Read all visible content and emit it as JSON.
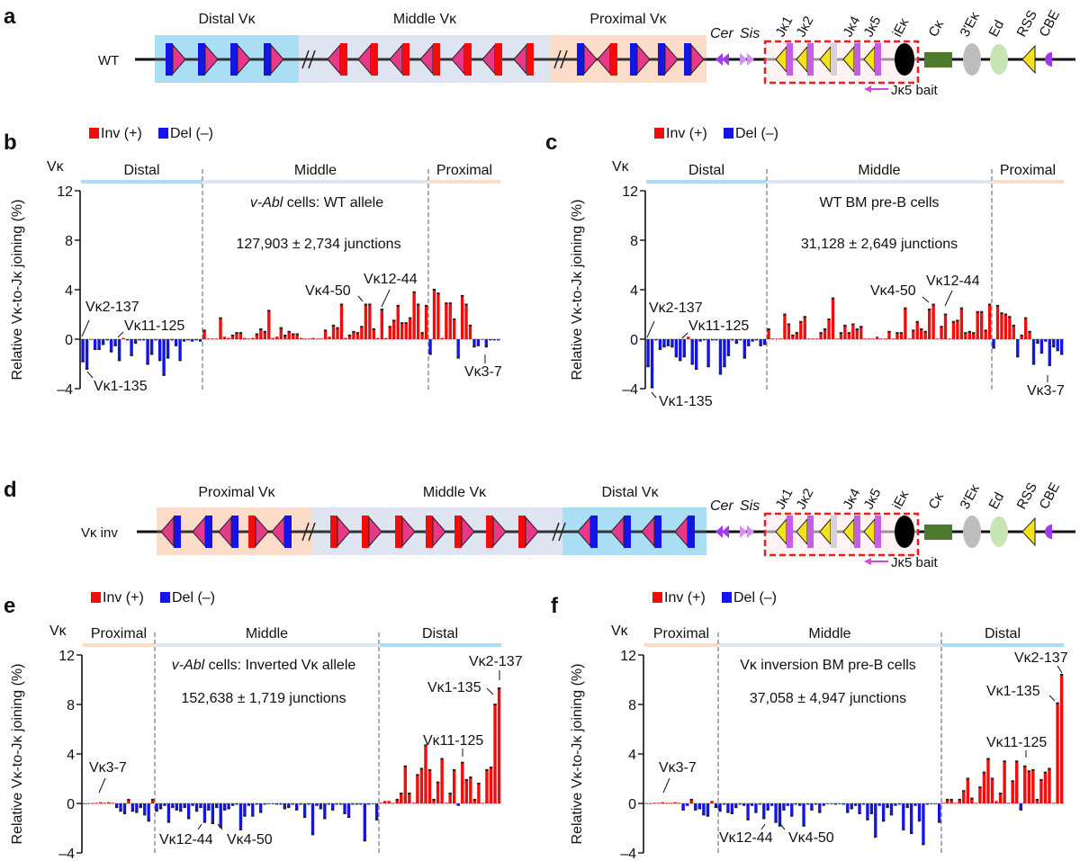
{
  "colors": {
    "inv": "#f20c0c",
    "del": "#1414e6",
    "distal": "#a9def4",
    "middle": "#dfe4f1",
    "proximal": "#fbdcc9",
    "v_pink": "#e8388a",
    "j_yellow": "#f7e21a",
    "j_purple": "#c55ee6",
    "cer": "#9b3cf0",
    "sis": "#d48ef2",
    "c_kappa": "#4d7a2e",
    "e3": "#bdbdbd",
    "ed": "#c7e4b5",
    "dashed_box": "#ee1c1c"
  },
  "panel_a": {
    "letter": "a",
    "allele": "WT",
    "regions": [
      "Distal Vκ",
      "Middle Vκ",
      "Proximal Vκ"
    ],
    "elements": [
      "Cer",
      "Sis",
      "Jκ1",
      "Jκ2",
      "Jκ4",
      "Jκ5",
      "iEκ",
      "Cκ",
      "3′Eκ",
      "Ed",
      "RSS",
      "CBE"
    ],
    "bait": "Jκ5 bait"
  },
  "panel_d": {
    "letter": "d",
    "allele": "Vκ inv",
    "regions": [
      "Proximal Vκ",
      "Middle Vκ",
      "Distal Vκ"
    ],
    "elements": [
      "Cer",
      "Sis",
      "Jκ1",
      "Jκ2",
      "Jκ4",
      "Jκ5",
      "iEκ",
      "Cκ",
      "3′Eκ",
      "Ed",
      "RSS",
      "CBE"
    ],
    "bait": "Jκ5 bait"
  },
  "chart_data": [
    {
      "panel": "b",
      "type": "bar",
      "title_italic": "v-Abl",
      "title_rest": " cells: WT allele",
      "subtitle": "127,903 ± 2,734 junctions",
      "ylabel": "Relative Vκ-to-Jκ joining (%)",
      "xlabel": "Vκ",
      "ylim": [
        -4,
        12
      ],
      "yticks": [
        -4,
        0,
        4,
        8,
        12
      ],
      "ytick_labels": [
        "–4",
        "0",
        "4",
        "8",
        "12"
      ],
      "legend": [
        "Inv (+)",
        "Del (–)"
      ],
      "legend_placement": "top-left",
      "grid": false,
      "annotations": [
        "Vκ2-137",
        "Vκ11-125",
        "Vκ1-135",
        "Vκ4-50",
        "Vκ12-44",
        "Vκ3-7"
      ],
      "segments": [
        {
          "name": "Distal",
          "values": [
            -1.8,
            -2.4,
            0,
            -0.8,
            -0.8,
            -0.4,
            -0.1,
            -1.0,
            -0.5,
            -1.7,
            0.1,
            -0.1,
            -1.3,
            -0.3,
            -0.1,
            -0.1,
            -2.0,
            -1.2,
            -0.1,
            -1.7,
            -2.9,
            -1.5,
            -0.1,
            -0.5,
            -1.7,
            -0.2,
            -0.1,
            -0.2,
            -0.1,
            -0.2
          ]
        },
        {
          "name": "Middle",
          "values": [
            0.7,
            0.05,
            0.05,
            0.05,
            1.7,
            0.2,
            0.1,
            0.3,
            0.5,
            0.5,
            0.1,
            0.05,
            0.1,
            0.4,
            0.8,
            0.6,
            2.3,
            0.1,
            0.2,
            0.9,
            0.3,
            0.6,
            0.4,
            0.4,
            0.1,
            0.05,
            0.05,
            0.1,
            0.05,
            0.05,
            0.7,
            0.2,
            1.1,
            0.9,
            2.8,
            0.1,
            0.3,
            0.6,
            0.5,
            1.0,
            2.8,
            2.8,
            0.8,
            0.1,
            2.4,
            0.1,
            1.0,
            1.5,
            2.7,
            1.3,
            1.3,
            1.7,
            3.8,
            2.8,
            0.5,
            2.7
          ]
        },
        {
          "name": "Proximal",
          "values": [
            -1.2,
            4.0,
            3.7,
            0.1,
            2.9,
            2.9,
            1.6,
            -1.5,
            3.5,
            2.8,
            1.1,
            -0.6,
            -0.5,
            0.0,
            -0.6,
            -0.1,
            -0.1,
            -0.1
          ]
        }
      ]
    },
    {
      "panel": "c",
      "type": "bar",
      "title_italic": "",
      "title_rest": "WT BM pre-B cells",
      "subtitle": "31,128 ± 2,649 junctions",
      "ylabel": "Relative Vκ-to-Jκ joining (%)",
      "xlabel": "Vκ",
      "ylim": [
        -4,
        12
      ],
      "yticks": [
        -4,
        0,
        4,
        8,
        12
      ],
      "ytick_labels": [
        "–4",
        "0",
        "4",
        "8",
        "12"
      ],
      "legend": [
        "Inv (+)",
        "Del (–)"
      ],
      "legend_placement": "top-left",
      "grid": false,
      "annotations": [
        "Vκ2-137",
        "Vκ11-125",
        "Vκ1-135",
        "Vκ4-50",
        "Vκ12-44",
        "Vκ3-7"
      ],
      "segments": [
        {
          "name": "Distal",
          "values": [
            -2.2,
            -3.9,
            -0.1,
            -0.8,
            -0.6,
            -0.5,
            -0.6,
            -1.4,
            -1.7,
            -1.4,
            0.2,
            -2.0,
            -2.4,
            -0.2,
            -0.1,
            -2.2,
            -0.1,
            -0.1,
            -2.8,
            -2.2,
            -1.3,
            -0.1,
            -0.3,
            -0.1,
            -1.5,
            -0.5,
            -0.2,
            -0.1,
            -0.5,
            -0.4
          ]
        },
        {
          "name": "Middle",
          "values": [
            0.8,
            0.05,
            0.05,
            0.05,
            2.0,
            1.2,
            0.3,
            0.5,
            1.4,
            1.8,
            0.05,
            0.05,
            0.05,
            0.5,
            0.8,
            1.6,
            3.3,
            0.05,
            0.5,
            1.1,
            0.5,
            1.2,
            0.8,
            1.0,
            0.05,
            0.05,
            0.05,
            0.2,
            0.05,
            0.05,
            0.6,
            0.05,
            0.5,
            0.5,
            2.5,
            0.05,
            0.7,
            1.4,
            0.8,
            0.6,
            2.4,
            2.8,
            0.05,
            1.0,
            2.0,
            0.05,
            1.4,
            1.5,
            2.5,
            0.5,
            0.6,
            0.5,
            2.2,
            2.2,
            0.7,
            2.8
          ]
        },
        {
          "name": "Proximal",
          "values": [
            -0.7,
            2.7,
            2.1,
            2.0,
            1.8,
            1.1,
            -1.4,
            0.3,
            1.7,
            0.6,
            -2.0,
            -0.3,
            -1.1,
            -0.2,
            -2.1,
            -0.6,
            -0.9,
            -1.2
          ]
        }
      ]
    },
    {
      "panel": "e",
      "type": "bar",
      "title_italic": "v-Abl",
      "title_rest": " cells: Inverted Vκ allele",
      "subtitle": "152,638 ± 1,719 junctions",
      "ylabel": "Relative Vκ-to-Jκ joining (%)",
      "xlabel": "Vκ",
      "ylim": [
        -4,
        12
      ],
      "yticks": [
        -4,
        0,
        4,
        8,
        12
      ],
      "ytick_labels": [
        "–4",
        "0",
        "4",
        "8",
        "12"
      ],
      "legend": [
        "Inv (+)",
        "Del (–)"
      ],
      "legend_placement": "top-left",
      "grid": false,
      "annotations": [
        "Vκ2-137",
        "Vκ1-135",
        "Vκ11-125",
        "Vκ3-7",
        "Vκ12-44",
        "Vκ4-50"
      ],
      "segments": [
        {
          "name": "Proximal",
          "values": [
            0,
            0.02,
            0.02,
            0.05,
            0.1,
            0.05,
            0.1,
            0.05,
            -0.3,
            -0.6,
            -0.8,
            0.3,
            -0.6,
            -0.7,
            -0.3,
            -0.9,
            -1.4,
            0.3
          ]
        },
        {
          "name": "Middle",
          "values": [
            -0.6,
            -0.4,
            -0.2,
            -1.5,
            -0.3,
            -0.5,
            -0.6,
            -0.3,
            -1.2,
            -0.2,
            -0.6,
            -0.3,
            -1.5,
            -0.5,
            -1.6,
            -0.3,
            -1.9,
            -0.5,
            -0.4,
            -0.2,
            -0.1,
            -2.1,
            -1.0,
            -0.2,
            -1.0,
            -0.1,
            -0.7,
            -0.1,
            -0.05,
            -0.05,
            -0.1,
            -0.1,
            -0.4,
            -0.3,
            -0.1,
            -0.5,
            -0.1,
            -1.1,
            -0.1,
            -2.5,
            -0.2,
            -0.4,
            -1.2,
            -0.1,
            -0.5,
            -0.1,
            -0.1,
            -0.8,
            -1.1,
            -0.1,
            -0.1,
            -0.1,
            -3.0,
            -0.1,
            -0.05,
            -1.3
          ]
        },
        {
          "name": "Distal",
          "values": [
            0.05,
            0.2,
            0.2,
            0.05,
            0.3,
            0.8,
            3.0,
            0.8,
            0.05,
            2.3,
            2.8,
            4.7,
            2.7,
            0.3,
            1.7,
            3.6,
            0.05,
            0.8,
            2.7,
            -0.2,
            3.3,
            1.9,
            2.1,
            0.3,
            1.6,
            0.05,
            2.7,
            2.9,
            8.0,
            9.3
          ]
        }
      ]
    },
    {
      "panel": "f",
      "type": "bar",
      "title_italic": "",
      "title_rest": "Vκ inversion BM pre-B cells",
      "subtitle": "37,058 ± 4,947 junctions",
      "ylabel": "Relative Vκ-to-Jκ joining (%)",
      "xlabel": "Vκ",
      "ylim": [
        -4,
        12
      ],
      "yticks": [
        -4,
        0,
        4,
        8,
        12
      ],
      "ytick_labels": [
        "–4",
        "0",
        "4",
        "8",
        "12"
      ],
      "legend": [
        "Inv (+)",
        "Del (–)"
      ],
      "legend_placement": "top-left",
      "grid": false,
      "annotations": [
        "Vκ2-137",
        "Vκ1-135",
        "Vκ11-125",
        "Vκ3-7",
        "Vκ12-44",
        "Vκ4-50"
      ],
      "segments": [
        {
          "name": "Proximal",
          "values": [
            0.02,
            0.02,
            0.05,
            0.05,
            0.1,
            0.05,
            0.05,
            0.1,
            0.05,
            -0.5,
            -0.2,
            0.3,
            -0.5,
            -0.4,
            -0.9,
            -1.0,
            0.2,
            -0.3
          ]
        },
        {
          "name": "Middle",
          "values": [
            -0.6,
            -0.1,
            -0.7,
            -0.8,
            -0.3,
            -0.1,
            -0.2,
            -1.3,
            -0.2,
            -0.7,
            -0.1,
            -1.2,
            -0.5,
            -0.2,
            -1.5,
            -1.8,
            -0.5,
            -0.2,
            -1.0,
            -0.1,
            -0.2,
            -1.8,
            -0.1,
            -0.5,
            -0.1,
            -0.7,
            -0.2,
            -0.05,
            -0.05,
            -0.1,
            -0.05,
            -0.1,
            -0.7,
            -0.4,
            -0.2,
            -0.8,
            -0.1,
            -1.3,
            -0.8,
            -2.7,
            -0.2,
            -1.4,
            -0.3,
            -0.9,
            -0.2,
            -0.1,
            -2.1,
            -0.3,
            -2.4,
            -0.2,
            -1.4,
            -3.3,
            -0.1,
            -0.05,
            -0.05,
            -1.5
          ]
        },
        {
          "name": "Distal",
          "values": [
            0.05,
            0.3,
            0.3,
            0.05,
            0.3,
            1.0,
            2.0,
            0.4,
            0.05,
            1.3,
            2.5,
            3.6,
            2.0,
            0.2,
            0.8,
            3.4,
            0.05,
            1.8,
            3.4,
            -0.5,
            3.0,
            2.6,
            2.7,
            0.3,
            1.9,
            2.5,
            2.8,
            0.05,
            8.1,
            10.4
          ]
        }
      ]
    }
  ]
}
